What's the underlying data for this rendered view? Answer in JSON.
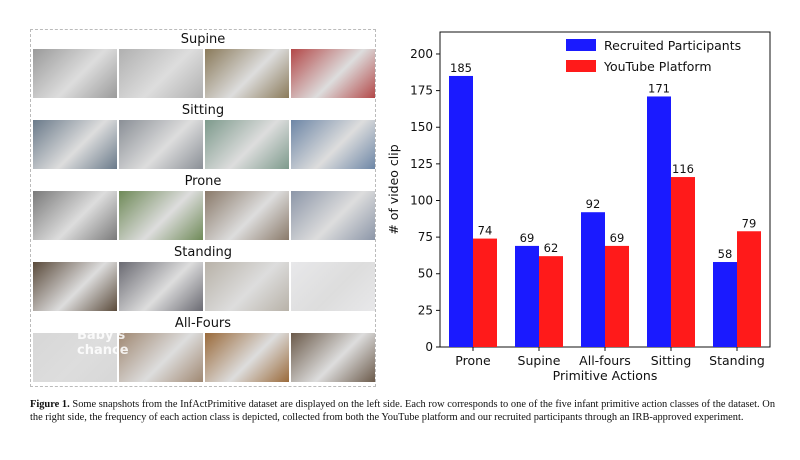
{
  "panel": {
    "rows": [
      {
        "label": "Supine",
        "thumbs": [
          "#9a9a9a",
          "#b0b0b0",
          "#8a7a5a",
          "#b34848"
        ]
      },
      {
        "label": "Sitting",
        "thumbs": [
          "#6a7a8a",
          "#8a8f96",
          "#7d9a8c",
          "#6d86a6"
        ]
      },
      {
        "label": "Prone",
        "thumbs": [
          "#7a7a7a",
          "#6f8a58",
          "#8a7a6a",
          "#8c96a8"
        ]
      },
      {
        "label": "Standing",
        "thumbs": [
          "#5a4a3a",
          "#6a6a72",
          "#b8b2a8",
          "#e8e8ea"
        ]
      },
      {
        "label": "All-Fours",
        "thumbs": [
          "#d7d7d7",
          "#a08872",
          "#9a6a3a",
          "#6b5a4a"
        ]
      }
    ],
    "watermark": "Baby's chance"
  },
  "chart_data": {
    "type": "bar",
    "categories": [
      "Prone",
      "Supine",
      "All-fours",
      "Sitting",
      "Standing"
    ],
    "series": [
      {
        "name": "Recruited Participants",
        "values": [
          185,
          69,
          92,
          171,
          58
        ],
        "color": "#1a1aff"
      },
      {
        "name": "YouTube Platform",
        "values": [
          74,
          62,
          69,
          116,
          79
        ],
        "color": "#ff1a1a"
      }
    ],
    "xlabel": "Primitive Actions",
    "ylabel": "# of video clip",
    "ylim": [
      0,
      215
    ],
    "yticks": [
      0,
      25,
      50,
      75,
      100,
      125,
      150,
      175,
      200
    ],
    "legend": "top-right",
    "grid": false
  },
  "caption": {
    "label": "Figure 1.",
    "text": " Some snapshots from the InfActPrimitive dataset are displayed on the left side. Each row corresponds to one of the five infant primitive action classes of the dataset.  On the right side, the frequency of each action class is depicted, collected from both the YouTube platform and our recruited participants through an IRB-approved experiment."
  }
}
